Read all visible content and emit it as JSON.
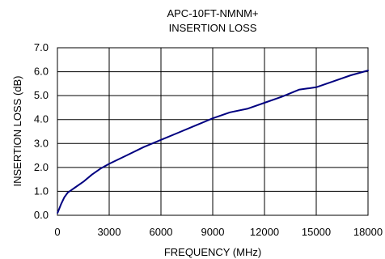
{
  "chart_data": {
    "type": "line",
    "title": "APC-10FT-NMNM+",
    "subtitle": "INSERTION LOSS",
    "xlabel": "FREQUENCY (MHz)",
    "ylabel": "INSERTION LOSS (dB)",
    "xlim": [
      0,
      18000
    ],
    "ylim": [
      0,
      7
    ],
    "x_ticks": [
      0,
      3000,
      6000,
      9000,
      12000,
      15000,
      18000
    ],
    "y_ticks": [
      0,
      1,
      2,
      3,
      4,
      5,
      6,
      7
    ],
    "x_tick_labels": [
      "0",
      "3000",
      "6000",
      "9000",
      "12000",
      "15000",
      "18000"
    ],
    "y_tick_labels": [
      "0.0",
      "1.0",
      "2.0",
      "3.0",
      "4.0",
      "5.0",
      "6.0",
      "7.0"
    ],
    "grid": true,
    "legend": "none",
    "series": [
      {
        "color": "#000080",
        "points": [
          [
            10,
            0.1
          ],
          [
            200,
            0.45
          ],
          [
            400,
            0.75
          ],
          [
            600,
            0.95
          ],
          [
            800,
            1.05
          ],
          [
            1000,
            1.15
          ],
          [
            1500,
            1.4
          ],
          [
            2000,
            1.7
          ],
          [
            2500,
            1.95
          ],
          [
            3000,
            2.15
          ],
          [
            4000,
            2.5
          ],
          [
            5000,
            2.85
          ],
          [
            6000,
            3.15
          ],
          [
            7000,
            3.45
          ],
          [
            8000,
            3.75
          ],
          [
            9000,
            4.05
          ],
          [
            10000,
            4.3
          ],
          [
            11000,
            4.45
          ],
          [
            12000,
            4.7
          ],
          [
            13000,
            4.95
          ],
          [
            13500,
            5.1
          ],
          [
            14000,
            5.25
          ],
          [
            14500,
            5.3
          ],
          [
            15000,
            5.35
          ],
          [
            16000,
            5.6
          ],
          [
            17000,
            5.85
          ],
          [
            18000,
            6.05
          ]
        ]
      }
    ]
  }
}
